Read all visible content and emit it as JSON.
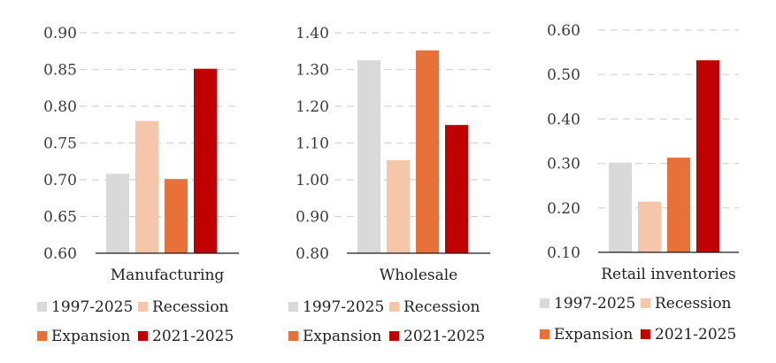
{
  "colors": {
    "series": [
      "#d9d9d9",
      "#f5c6aa",
      "#e8713a",
      "#c00000"
    ]
  },
  "chart_data": [
    {
      "type": "bar",
      "xlabel": "Manufacturing",
      "ylim": [
        0.6,
        0.9
      ],
      "yticks": [
        "0.60",
        "0.65",
        "0.70",
        "0.75",
        "0.80",
        "0.85",
        "0.90"
      ],
      "series": [
        {
          "name": "1997-2025",
          "value": 0.708
        },
        {
          "name": "Recession",
          "value": 0.78
        },
        {
          "name": "Expansion",
          "value": 0.701
        },
        {
          "name": "2021-2025",
          "value": 0.851
        }
      ]
    },
    {
      "type": "bar",
      "xlabel": "Wholesale",
      "ylim": [
        0.8,
        1.4
      ],
      "yticks": [
        "0.80",
        "0.90",
        "1.00",
        "1.10",
        "1.20",
        "1.30",
        "1.40"
      ],
      "series": [
        {
          "name": "1997-2025",
          "value": 1.325
        },
        {
          "name": "Recession",
          "value": 1.053
        },
        {
          "name": "Expansion",
          "value": 1.352
        },
        {
          "name": "2021-2025",
          "value": 1.149
        }
      ]
    },
    {
      "type": "bar",
      "xlabel": "Retail inventories",
      "ylim": [
        0.1,
        0.6
      ],
      "yticks": [
        "0.10",
        "0.20",
        "0.30",
        "0.40",
        "0.50",
        "0.60"
      ],
      "series": [
        {
          "name": "1997-2025",
          "value": 0.302
        },
        {
          "name": "Recession",
          "value": 0.214
        },
        {
          "name": "Expansion",
          "value": 0.313
        },
        {
          "name": "2021-2025",
          "value": 0.532
        }
      ]
    }
  ],
  "legend": {
    "labels": [
      "1997-2025",
      "Recession",
      "Expansion",
      "2021-2025"
    ]
  }
}
